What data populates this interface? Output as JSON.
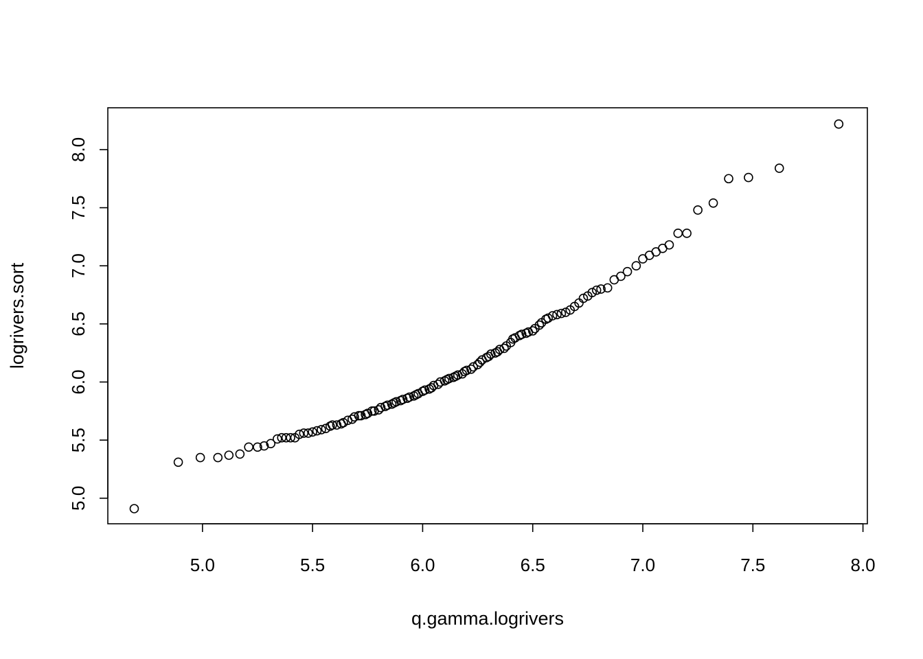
{
  "chart_data": {
    "type": "scatter",
    "title": "",
    "xlabel": "q.gamma.logrivers",
    "ylabel": "logrivers.sort",
    "xlim": [
      4.57,
      8.02
    ],
    "ylim": [
      4.78,
      8.36
    ],
    "x_ticks": [
      5.0,
      5.5,
      6.0,
      6.5,
      7.0,
      7.5,
      8.0
    ],
    "x_tick_labels": [
      "5.0",
      "5.5",
      "6.0",
      "6.5",
      "7.0",
      "7.5",
      "8.0"
    ],
    "y_ticks": [
      5.0,
      5.5,
      6.0,
      6.5,
      7.0,
      7.5,
      8.0
    ],
    "y_tick_labels": [
      "5.0",
      "5.5",
      "6.0",
      "6.5",
      "7.0",
      "7.5",
      "8.0"
    ],
    "grid": false,
    "legend": "none",
    "marker": "open-circle",
    "points": [
      [
        4.69,
        4.91
      ],
      [
        4.89,
        5.31
      ],
      [
        4.99,
        5.35
      ],
      [
        5.07,
        5.35
      ],
      [
        5.12,
        5.37
      ],
      [
        5.17,
        5.38
      ],
      [
        5.21,
        5.44
      ],
      [
        5.25,
        5.44
      ],
      [
        5.28,
        5.45
      ],
      [
        5.31,
        5.47
      ],
      [
        5.34,
        5.51
      ],
      [
        5.36,
        5.52
      ],
      [
        5.38,
        5.52
      ],
      [
        5.4,
        5.52
      ],
      [
        5.42,
        5.52
      ],
      [
        5.44,
        5.55
      ],
      [
        5.46,
        5.56
      ],
      [
        5.48,
        5.56
      ],
      [
        5.5,
        5.57
      ],
      [
        5.52,
        5.58
      ],
      [
        5.54,
        5.59
      ],
      [
        5.56,
        5.6
      ],
      [
        5.58,
        5.62
      ],
      [
        5.59,
        5.63
      ],
      [
        5.61,
        5.63
      ],
      [
        5.63,
        5.64
      ],
      [
        5.64,
        5.65
      ],
      [
        5.66,
        5.67
      ],
      [
        5.68,
        5.68
      ],
      [
        5.69,
        5.7
      ],
      [
        5.71,
        5.71
      ],
      [
        5.72,
        5.71
      ],
      [
        5.74,
        5.72
      ],
      [
        5.75,
        5.73
      ],
      [
        5.77,
        5.75
      ],
      [
        5.78,
        5.75
      ],
      [
        5.8,
        5.76
      ],
      [
        5.81,
        5.78
      ],
      [
        5.83,
        5.79
      ],
      [
        5.84,
        5.8
      ],
      [
        5.86,
        5.81
      ],
      [
        5.87,
        5.82
      ],
      [
        5.88,
        5.83
      ],
      [
        5.9,
        5.84
      ],
      [
        5.91,
        5.85
      ],
      [
        5.93,
        5.86
      ],
      [
        5.94,
        5.87
      ],
      [
        5.96,
        5.88
      ],
      [
        5.97,
        5.89
      ],
      [
        5.98,
        5.9
      ],
      [
        6.0,
        5.92
      ],
      [
        6.01,
        5.93
      ],
      [
        6.03,
        5.94
      ],
      [
        6.04,
        5.95
      ],
      [
        6.05,
        5.97
      ],
      [
        6.07,
        5.98
      ],
      [
        6.08,
        6.0
      ],
      [
        6.1,
        6.01
      ],
      [
        6.11,
        6.02
      ],
      [
        6.12,
        6.03
      ],
      [
        6.14,
        6.04
      ],
      [
        6.15,
        6.05
      ],
      [
        6.16,
        6.06
      ],
      [
        6.18,
        6.07
      ],
      [
        6.19,
        6.09
      ],
      [
        6.2,
        6.1
      ],
      [
        6.22,
        6.11
      ],
      [
        6.23,
        6.13
      ],
      [
        6.25,
        6.15
      ],
      [
        6.26,
        6.17
      ],
      [
        6.27,
        6.19
      ],
      [
        6.29,
        6.21
      ],
      [
        6.3,
        6.22
      ],
      [
        6.31,
        6.24
      ],
      [
        6.33,
        6.25
      ],
      [
        6.34,
        6.26
      ],
      [
        6.35,
        6.28
      ],
      [
        6.37,
        6.29
      ],
      [
        6.38,
        6.31
      ],
      [
        6.4,
        6.34
      ],
      [
        6.41,
        6.37
      ],
      [
        6.42,
        6.38
      ],
      [
        6.44,
        6.4
      ],
      [
        6.45,
        6.41
      ],
      [
        6.47,
        6.42
      ],
      [
        6.48,
        6.43
      ],
      [
        6.5,
        6.44
      ],
      [
        6.51,
        6.46
      ],
      [
        6.53,
        6.49
      ],
      [
        6.54,
        6.51
      ],
      [
        6.56,
        6.54
      ],
      [
        6.57,
        6.55
      ],
      [
        6.59,
        6.57
      ],
      [
        6.61,
        6.58
      ],
      [
        6.63,
        6.59
      ],
      [
        6.65,
        6.6
      ],
      [
        6.67,
        6.62
      ],
      [
        6.69,
        6.65
      ],
      [
        6.71,
        6.68
      ],
      [
        6.73,
        6.72
      ],
      [
        6.75,
        6.74
      ],
      [
        6.77,
        6.77
      ],
      [
        6.79,
        6.79
      ],
      [
        6.81,
        6.8
      ],
      [
        6.84,
        6.81
      ],
      [
        6.87,
        6.88
      ],
      [
        6.9,
        6.91
      ],
      [
        6.93,
        6.95
      ],
      [
        6.97,
        7.0
      ],
      [
        7.0,
        7.06
      ],
      [
        7.03,
        7.09
      ],
      [
        7.06,
        7.12
      ],
      [
        7.09,
        7.15
      ],
      [
        7.12,
        7.18
      ],
      [
        7.16,
        7.28
      ],
      [
        7.2,
        7.28
      ],
      [
        7.25,
        7.48
      ],
      [
        7.32,
        7.54
      ],
      [
        7.39,
        7.75
      ],
      [
        7.48,
        7.76
      ],
      [
        7.62,
        7.84
      ],
      [
        7.89,
        8.22
      ]
    ]
  }
}
